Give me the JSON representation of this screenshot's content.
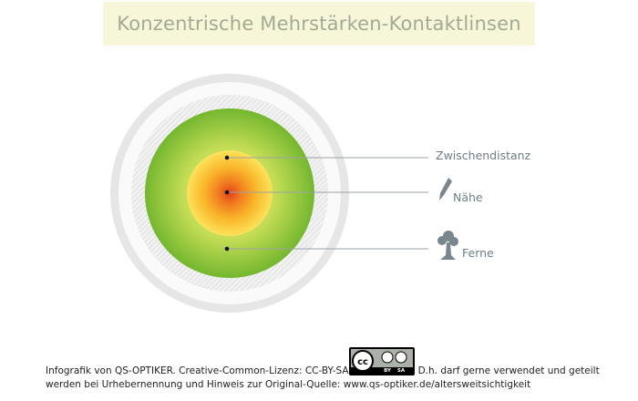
{
  "header": {
    "title": "Konzentrische Mehrstärken-Kontaktlinsen"
  },
  "labels": [
    "Zwischendistanz",
    "Nähe",
    "Ferne"
  ],
  "badge": {
    "cc": "cc",
    "by": "BY",
    "sa": "SA"
  },
  "footer": {
    "line1_start": "Infografik von QS-OPTIKER. Creative-Common-Lizenz: CC-BY-SA",
    "line1_end": "D.h. darf gerne verwendet und geteilt",
    "line2": "werden bei Urhebernennung und Hinweis zur Original-Quelle: www.qs-optiker.de/altersweitsichtigkeit"
  }
}
